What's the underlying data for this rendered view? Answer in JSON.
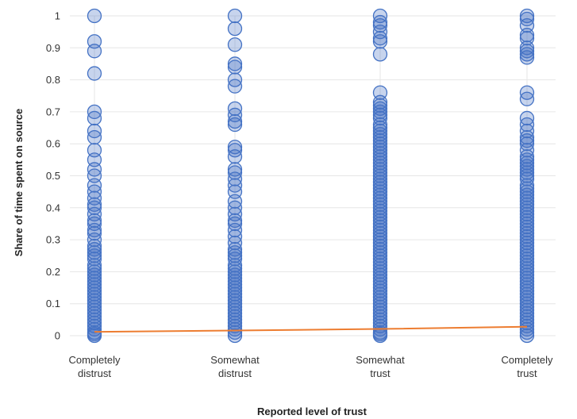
{
  "chart_data": {
    "type": "scatter",
    "xlabel": "Reported level of trust",
    "ylabel": "Share of time spent on source",
    "ylim": [
      0,
      1
    ],
    "yticks": [
      "0",
      "0.1",
      "0.2",
      "0.3",
      "0.4",
      "0.5",
      "0.6",
      "0.7",
      "0.8",
      "0.9",
      "1"
    ],
    "categories": [
      [
        "Completely",
        "distrust"
      ],
      [
        "Somewhat",
        "distrust"
      ],
      [
        "Somewhat",
        "trust"
      ],
      [
        "Completely",
        "trust"
      ]
    ],
    "grid": true,
    "colors": {
      "points": "#4472C4",
      "trend": "#ED7D31"
    },
    "series": [
      {
        "values": [
          [
            1.0,
            0.92,
            0.89,
            0.82,
            0.7,
            0.68,
            0.64,
            0.62,
            0.58,
            0.55,
            0.52,
            0.5,
            0.47,
            0.45,
            0.43,
            0.41,
            0.4,
            0.38,
            0.36,
            0.35,
            0.33,
            0.32,
            0.3,
            0.28,
            0.27,
            0.26,
            0.25,
            0.24,
            0.22,
            0.21,
            0.2,
            0.19,
            0.18,
            0.17,
            0.16,
            0.15,
            0.14,
            0.13,
            0.12,
            0.11,
            0.1,
            0.09,
            0.08,
            0.07,
            0.06,
            0.05,
            0.04,
            0.03,
            0.02,
            0.01,
            0.005,
            0.0
          ],
          [
            1.0,
            0.96,
            0.91,
            0.85,
            0.84,
            0.8,
            0.78,
            0.71,
            0.69,
            0.67,
            0.66,
            0.59,
            0.58,
            0.56,
            0.52,
            0.51,
            0.49,
            0.47,
            0.45,
            0.42,
            0.4,
            0.38,
            0.36,
            0.35,
            0.33,
            0.31,
            0.29,
            0.27,
            0.26,
            0.25,
            0.24,
            0.22,
            0.21,
            0.2,
            0.19,
            0.18,
            0.17,
            0.16,
            0.15,
            0.14,
            0.13,
            0.12,
            0.11,
            0.1,
            0.09,
            0.08,
            0.07,
            0.06,
            0.05,
            0.04,
            0.03,
            0.02,
            0.01,
            0.0
          ],
          [
            1.0,
            0.98,
            0.97,
            0.95,
            0.93,
            0.92,
            0.88,
            0.76,
            0.73,
            0.72,
            0.71,
            0.7,
            0.69,
            0.68,
            0.66,
            0.65,
            0.64,
            0.63,
            0.62,
            0.61,
            0.6,
            0.59,
            0.58,
            0.57,
            0.56,
            0.55,
            0.54,
            0.53,
            0.52,
            0.51,
            0.5,
            0.49,
            0.48,
            0.47,
            0.46,
            0.45,
            0.44,
            0.43,
            0.42,
            0.41,
            0.4,
            0.39,
            0.38,
            0.37,
            0.36,
            0.35,
            0.34,
            0.33,
            0.32,
            0.31,
            0.3,
            0.29,
            0.28,
            0.27,
            0.26,
            0.25,
            0.24,
            0.23,
            0.22,
            0.21,
            0.2,
            0.19,
            0.18,
            0.17,
            0.16,
            0.15,
            0.14,
            0.13,
            0.12,
            0.11,
            0.1,
            0.09,
            0.08,
            0.07,
            0.06,
            0.05,
            0.04,
            0.03,
            0.02,
            0.01,
            0.005,
            0.0
          ],
          [
            1.0,
            0.99,
            0.97,
            0.94,
            0.93,
            0.9,
            0.89,
            0.88,
            0.87,
            0.76,
            0.74,
            0.68,
            0.66,
            0.64,
            0.62,
            0.61,
            0.6,
            0.58,
            0.56,
            0.55,
            0.54,
            0.53,
            0.52,
            0.51,
            0.5,
            0.49,
            0.47,
            0.46,
            0.45,
            0.44,
            0.43,
            0.42,
            0.41,
            0.4,
            0.39,
            0.38,
            0.37,
            0.36,
            0.35,
            0.34,
            0.33,
            0.32,
            0.31,
            0.3,
            0.29,
            0.28,
            0.27,
            0.26,
            0.25,
            0.24,
            0.23,
            0.22,
            0.21,
            0.2,
            0.19,
            0.18,
            0.17,
            0.16,
            0.15,
            0.14,
            0.13,
            0.12,
            0.11,
            0.1,
            0.09,
            0.08,
            0.07,
            0.06,
            0.05,
            0.04,
            0.03,
            0.02,
            0.01,
            0.0
          ]
        ]
      }
    ],
    "trend_line": {
      "y": [
        0.012,
        0.016,
        0.021,
        0.028
      ]
    }
  }
}
